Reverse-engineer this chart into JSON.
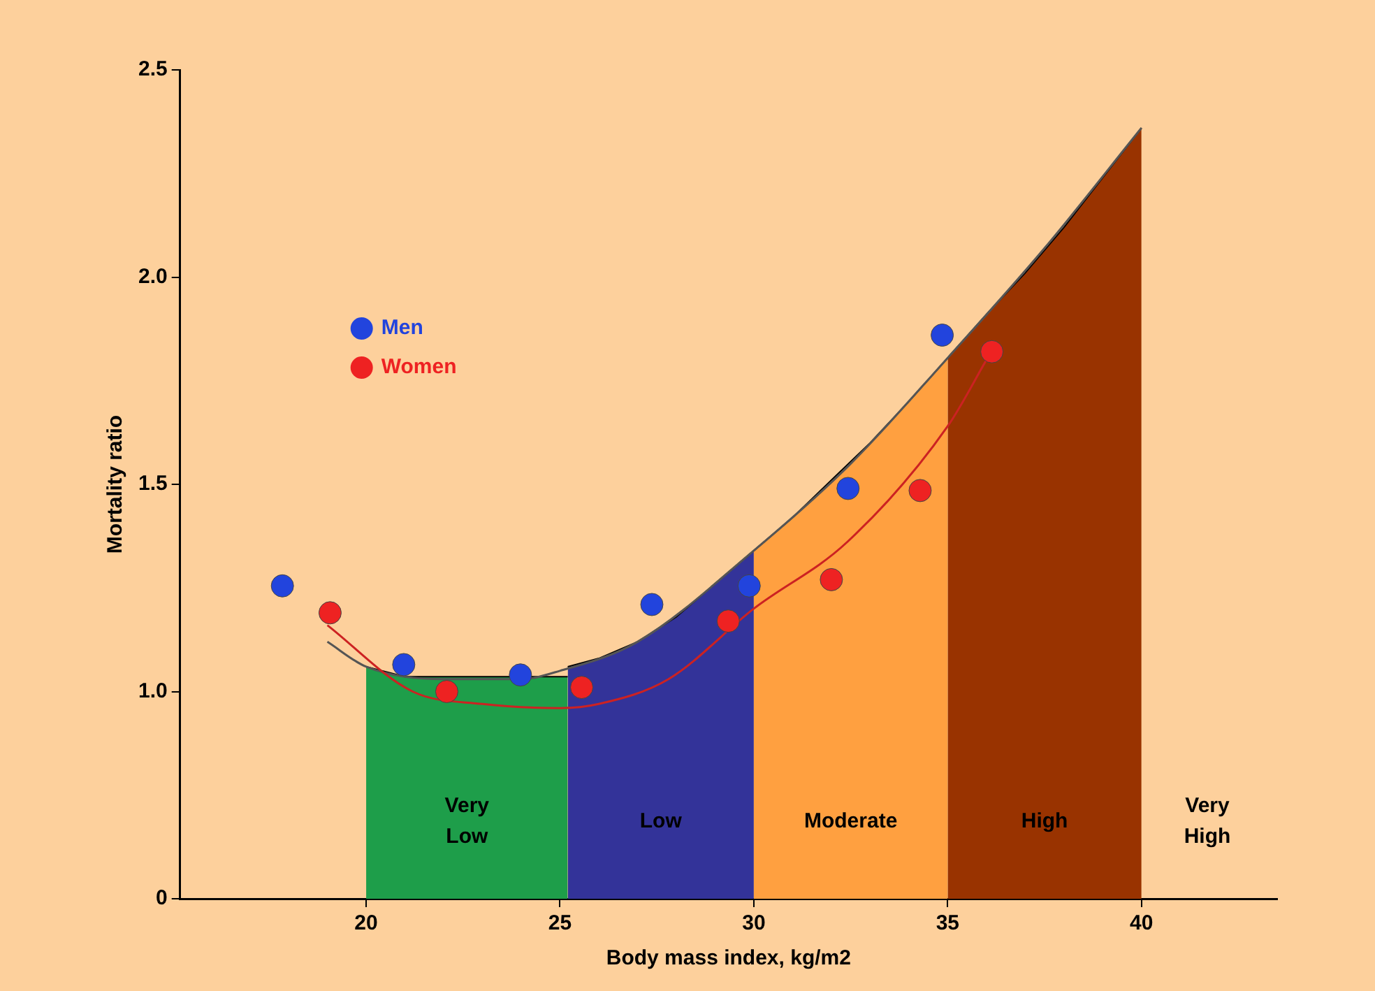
{
  "chart_data": {
    "type": "scatter",
    "xlabel": "Body mass index, kg/m2",
    "ylabel": "Mortality ratio",
    "xlim": [
      15.2,
      43.5
    ],
    "xticks": [
      20,
      25,
      30,
      35,
      40
    ],
    "ylim": [
      0.5,
      2.5
    ],
    "yticks": [
      {
        "value": 0.5,
        "label": "0"
      },
      {
        "value": 1,
        "label": "1.0"
      },
      1.5,
      {
        "value": 2,
        "label": "2.0"
      },
      2.5
    ],
    "series": [
      {
        "type": "area",
        "name": "Very Low",
        "color": "#1e9e4a",
        "x": [
          20,
          21,
          22,
          23,
          24,
          25.2
        ],
        "values": [
          1.06,
          1.036,
          1.036,
          1.036,
          1.036,
          1.036
        ]
      },
      {
        "type": "area",
        "name": "Low",
        "color": "#333399",
        "x": [
          25.2,
          26,
          27,
          28,
          29,
          30
        ],
        "values": [
          1.06,
          1.08,
          1.12,
          1.18,
          1.26,
          1.34
        ]
      },
      {
        "type": "area",
        "name": "Moderate",
        "color": "#ffa040",
        "x": [
          30,
          31,
          32,
          33,
          34,
          35
        ],
        "values": [
          1.34,
          1.42,
          1.51,
          1.6,
          1.7,
          1.805
        ]
      },
      {
        "type": "area",
        "name": "High",
        "color": "#993300",
        "x": [
          35,
          36,
          37,
          38,
          39,
          40
        ],
        "values": [
          1.805,
          1.91,
          2.01,
          2.12,
          2.24,
          2.36
        ]
      },
      {
        "type": "line",
        "color": "#555555",
        "x": [
          19,
          20,
          22,
          24,
          25,
          27,
          30,
          32.5,
          35,
          37.5,
          40
        ],
        "values": [
          1.12,
          1.06,
          1.03,
          1.03,
          1.05,
          1.12,
          1.34,
          1.55,
          1.805,
          2.07,
          2.36
        ]
      },
      {
        "type": "line",
        "color": "#cc2222",
        "x": [
          19,
          21.2,
          23,
          25,
          26,
          27.8,
          30,
          32.4,
          35,
          36
        ],
        "values": [
          1.16,
          1.0,
          0.97,
          0.96,
          0.97,
          1.03,
          1.2,
          1.36,
          1.64,
          1.8
        ]
      },
      {
        "marker": "circle",
        "name": "Men",
        "color": "#2244dd",
        "x": [
          17.84,
          20.97,
          23.98,
          27.37,
          29.88,
          32.43,
          34.86
        ],
        "values": [
          1.255,
          1.065,
          1.04,
          1.21,
          1.255,
          1.49,
          1.86
        ]
      },
      {
        "marker": "circle",
        "name": "Women",
        "color": "#ee2222",
        "x": [
          19.07,
          22.08,
          25.56,
          29.34,
          32.0,
          34.29,
          36.14
        ],
        "values": [
          1.19,
          1.0,
          1.01,
          1.17,
          1.27,
          1.485,
          1.82
        ]
      }
    ],
    "annotations": [
      "Very High"
    ],
    "legend": "top left",
    "grid": false
  }
}
